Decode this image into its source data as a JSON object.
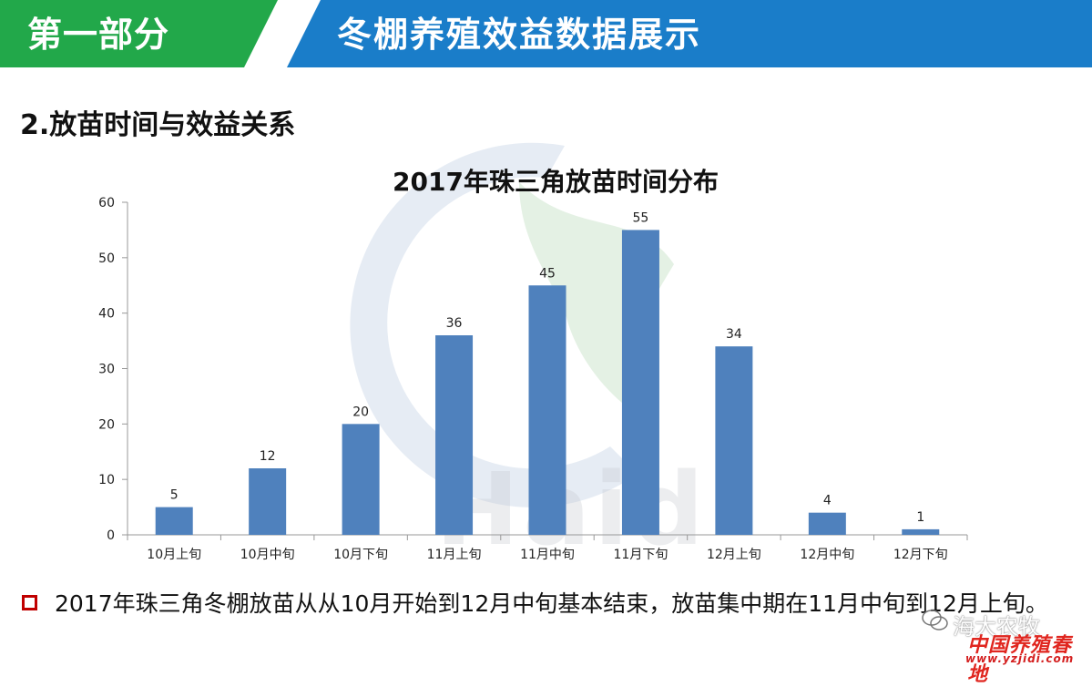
{
  "header": {
    "part_label": "第一部分",
    "section_title": "冬棚养殖效益数据展示",
    "left_color": "#22a84a",
    "right_color": "#1a7dc9"
  },
  "subheading": "2.放苗时间与效益关系",
  "chart_data": {
    "type": "bar",
    "title": "2017年珠三角放苗时间分布",
    "categories": [
      "10月上旬",
      "10月中旬",
      "10月下旬",
      "11月上旬",
      "11月中旬",
      "11月下旬",
      "12月上旬",
      "12月中旬",
      "12月下旬"
    ],
    "values": [
      5,
      12,
      20,
      36,
      45,
      55,
      34,
      4,
      1
    ],
    "ylim": [
      0,
      60
    ],
    "yticks": [
      0,
      10,
      20,
      30,
      40,
      50,
      60
    ],
    "bar_color": "#4f81bd",
    "grid": false,
    "legend": "none"
  },
  "bullet": {
    "text": "2017年珠三角冬棚放苗从从10月开始到12月中旬基本结束，放苗集中期在11月中旬到12月上旬。"
  },
  "watermarks": {
    "logo_text": "Haid",
    "wechat_text": "海大农牧",
    "site_cn": "中国养殖春地",
    "site_url": "www.yzjidi.com"
  }
}
